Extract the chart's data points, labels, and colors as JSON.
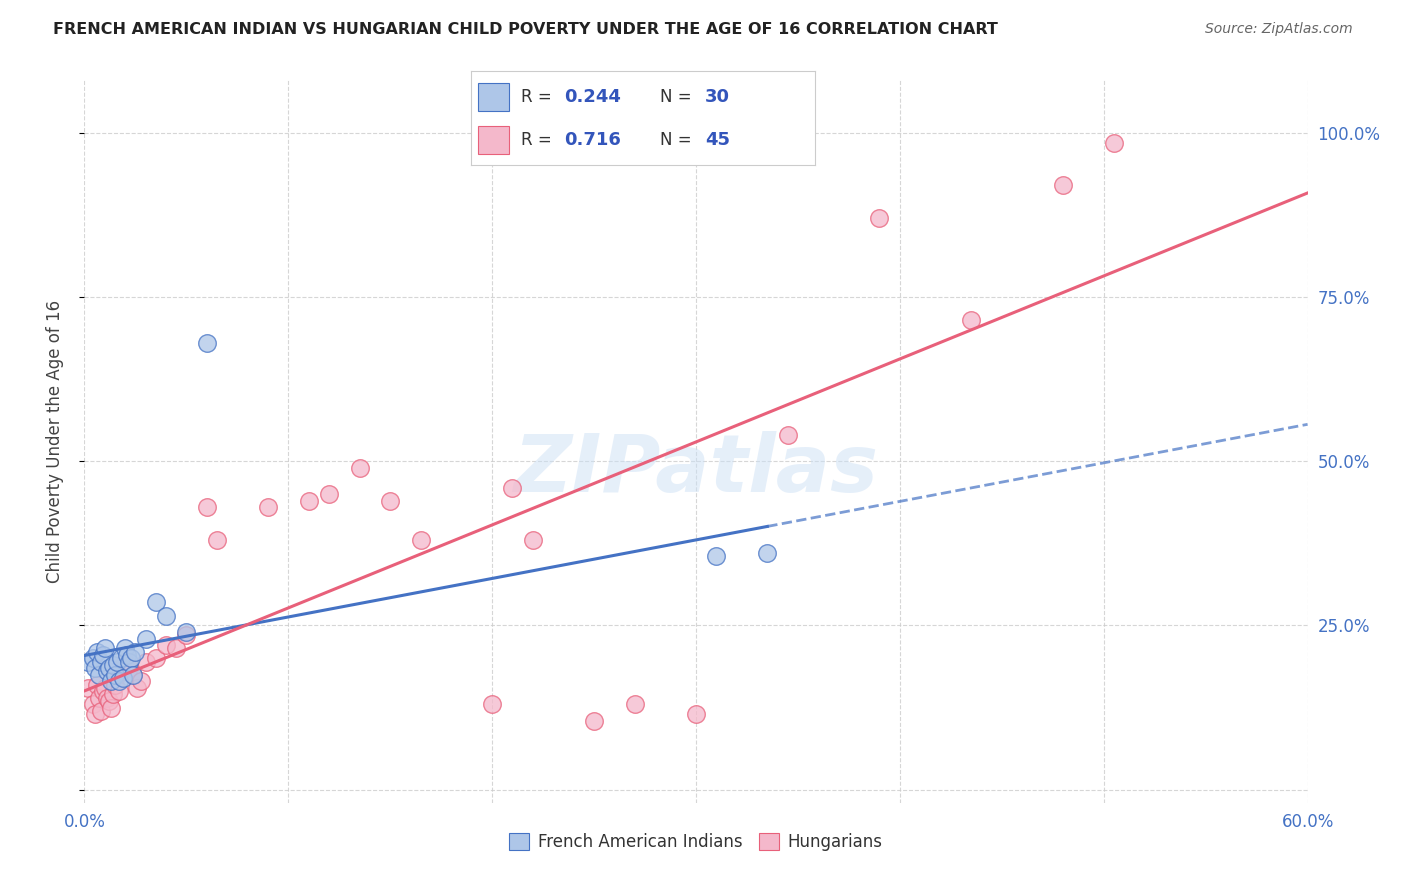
{
  "title": "FRENCH AMERICAN INDIAN VS HUNGARIAN CHILD POVERTY UNDER THE AGE OF 16 CORRELATION CHART",
  "source": "Source: ZipAtlas.com",
  "ylabel": "Child Poverty Under the Age of 16",
  "xlim": [
    0.0,
    0.6
  ],
  "ylim": [
    -0.02,
    1.08
  ],
  "yticks": [
    0.0,
    0.25,
    0.5,
    0.75,
    1.0
  ],
  "ytick_labels": [
    "",
    "25.0%",
    "50.0%",
    "75.0%",
    "100.0%"
  ],
  "xticks": [
    0.0,
    0.1,
    0.2,
    0.3,
    0.4,
    0.5,
    0.6
  ],
  "xtick_labels": [
    "0.0%",
    "",
    "",
    "",
    "",
    "",
    "60.0%"
  ],
  "blue_color": "#aec6e8",
  "pink_color": "#f4b8cb",
  "blue_line_color": "#4472c4",
  "pink_line_color": "#e8607a",
  "tick_label_color": "#4472c4",
  "legend_R_N_color": "#3355bb",
  "background_color": "#ffffff",
  "watermark": "ZIPatlas",
  "blue_scatter_x": [
    0.002,
    0.004,
    0.005,
    0.006,
    0.007,
    0.008,
    0.009,
    0.01,
    0.011,
    0.012,
    0.013,
    0.014,
    0.015,
    0.016,
    0.017,
    0.018,
    0.019,
    0.02,
    0.021,
    0.022,
    0.023,
    0.024,
    0.025,
    0.03,
    0.035,
    0.04,
    0.05,
    0.06,
    0.31,
    0.335
  ],
  "blue_scatter_y": [
    0.195,
    0.2,
    0.185,
    0.21,
    0.175,
    0.195,
    0.205,
    0.215,
    0.18,
    0.185,
    0.165,
    0.19,
    0.175,
    0.195,
    0.165,
    0.2,
    0.17,
    0.215,
    0.205,
    0.195,
    0.2,
    0.175,
    0.21,
    0.23,
    0.285,
    0.265,
    0.24,
    0.68,
    0.355,
    0.36
  ],
  "pink_scatter_x": [
    0.002,
    0.004,
    0.005,
    0.006,
    0.007,
    0.008,
    0.009,
    0.01,
    0.011,
    0.012,
    0.013,
    0.014,
    0.015,
    0.016,
    0.017,
    0.018,
    0.02,
    0.022,
    0.024,
    0.026,
    0.028,
    0.03,
    0.035,
    0.04,
    0.045,
    0.05,
    0.06,
    0.065,
    0.09,
    0.11,
    0.12,
    0.135,
    0.15,
    0.165,
    0.2,
    0.21,
    0.22,
    0.25,
    0.27,
    0.3,
    0.345,
    0.39,
    0.435,
    0.48,
    0.505
  ],
  "pink_scatter_y": [
    0.155,
    0.13,
    0.115,
    0.16,
    0.14,
    0.12,
    0.15,
    0.155,
    0.14,
    0.135,
    0.125,
    0.145,
    0.16,
    0.175,
    0.15,
    0.18,
    0.195,
    0.185,
    0.175,
    0.155,
    0.165,
    0.195,
    0.2,
    0.22,
    0.215,
    0.235,
    0.43,
    0.38,
    0.43,
    0.44,
    0.45,
    0.49,
    0.44,
    0.38,
    0.13,
    0.46,
    0.38,
    0.105,
    0.13,
    0.115,
    0.54,
    0.87,
    0.715,
    0.92,
    0.985
  ],
  "blue_line_x_start": 0.0,
  "blue_line_x_end": 0.6,
  "pink_line_x_start": 0.0,
  "pink_line_x_end": 0.6
}
